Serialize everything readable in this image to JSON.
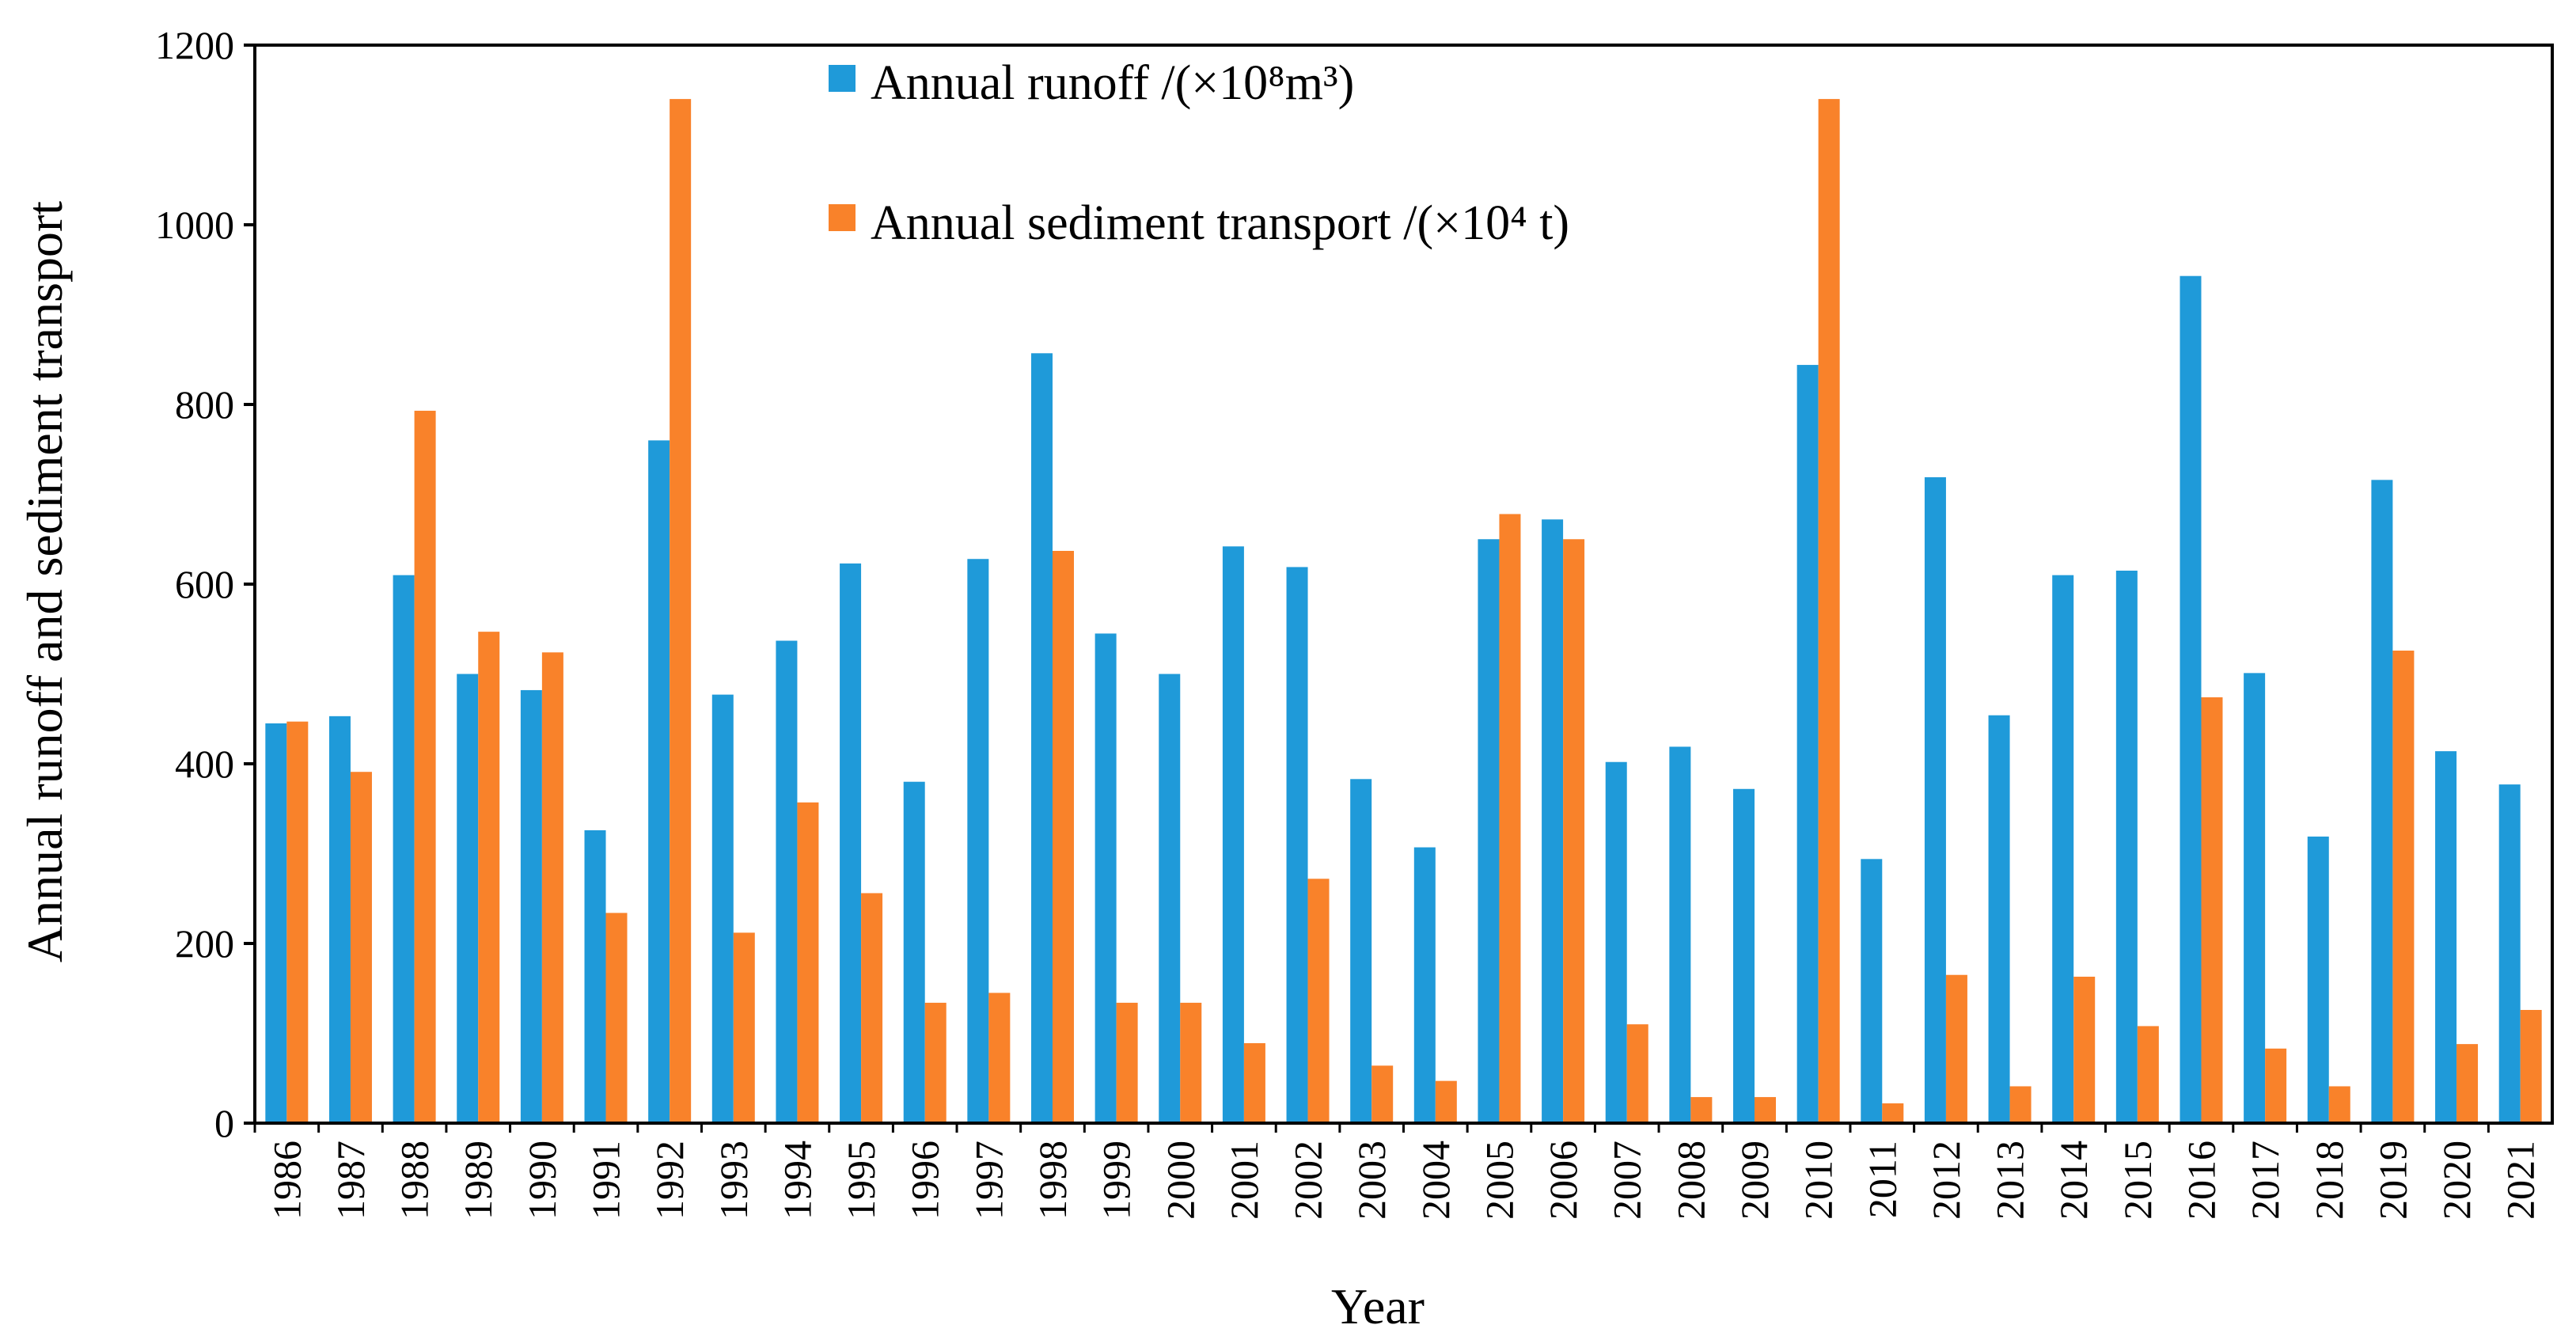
{
  "chart_data": {
    "type": "bar",
    "title": "",
    "xlabel": "Year",
    "ylabel": "Annual runoff and sediment transport",
    "ylim": [
      0,
      1200
    ],
    "yticks": [
      "0",
      "200",
      "400",
      "600",
      "800",
      "1000",
      "1200"
    ],
    "grid": false,
    "legend_position": "top-center",
    "colors": {
      "runoff": "#1F9AD9",
      "sediment": "#F9822A",
      "axis": "#000000"
    },
    "categories": [
      "1986",
      "1987",
      "1988",
      "1989",
      "1990",
      "1991",
      "1992",
      "1993",
      "1994",
      "1995",
      "1996",
      "1997",
      "1998",
      "1999",
      "2000",
      "2001",
      "2002",
      "2003",
      "2004",
      "2005",
      "2006",
      "2007",
      "2008",
      "2009",
      "2010",
      "2011",
      "2012",
      "2013",
      "2014",
      "2015",
      "2016",
      "2017",
      "2018",
      "2019",
      "2020",
      "2021"
    ],
    "series": [
      {
        "name": "Annual runoff /(×10⁸m³)",
        "key": "runoff",
        "values": [
          445,
          453,
          610,
          500,
          482,
          326,
          760,
          477,
          537,
          623,
          380,
          628,
          857,
          545,
          500,
          642,
          619,
          383,
          307,
          650,
          672,
          402,
          419,
          372,
          844,
          294,
          719,
          454,
          610,
          615,
          943,
          501,
          319,
          716,
          414,
          377
        ]
      },
      {
        "name": "Annual sediment transport /(×10⁴ t)",
        "key": "sediment",
        "values": [
          447,
          391,
          793,
          547,
          524,
          234,
          1140,
          212,
          357,
          256,
          134,
          145,
          637,
          134,
          134,
          89,
          272,
          64,
          47,
          678,
          650,
          110,
          29,
          29,
          1140,
          22,
          165,
          41,
          163,
          108,
          474,
          83,
          41,
          526,
          88,
          126
        ]
      }
    ]
  }
}
